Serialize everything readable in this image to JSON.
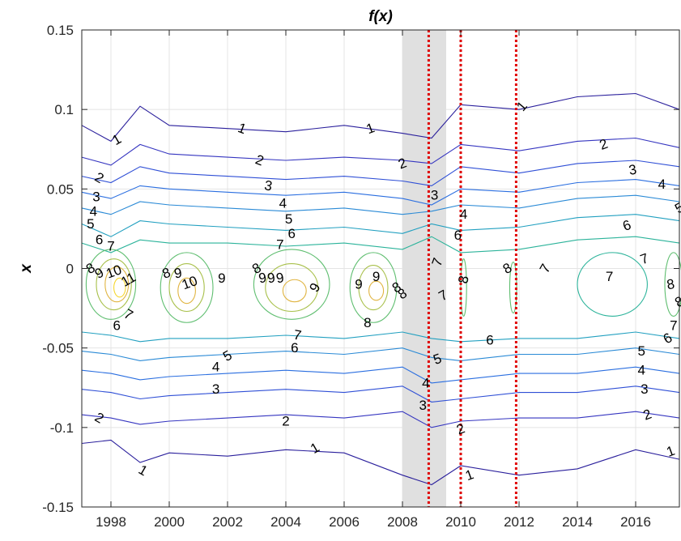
{
  "chart_data": {
    "type": "contour",
    "title": "f(x)",
    "xlabel": "",
    "ylabel": "x",
    "xlim": [
      1997.0,
      2017.5
    ],
    "ylim": [
      -0.15,
      0.15
    ],
    "x_ticks": [
      1998,
      2000,
      2002,
      2004,
      2006,
      2008,
      2010,
      2012,
      2014,
      2016
    ],
    "y_ticks": [
      -0.15,
      -0.1,
      -0.05,
      0,
      0.05,
      0.1,
      0.15
    ],
    "y_tick_labels": [
      "-0.15",
      "-0.1",
      "-0.05",
      "0",
      "0.05",
      "0.1",
      "0.15"
    ],
    "grid": true,
    "shaded_region": [
      2008.0,
      2009.5
    ],
    "vertical_lines": [
      2008.9,
      2010.0,
      2011.9
    ],
    "vertical_line_color": "#e00000",
    "shade_color": "#e0e0e0",
    "contour_levels": [
      1,
      2,
      3,
      4,
      5,
      6,
      7,
      8,
      9,
      10,
      11
    ],
    "level_colors": [
      "#2a1f9c",
      "#3535c0",
      "#2f4fd6",
      "#2a6ee0",
      "#2a8ad6",
      "#22a0c0",
      "#2bb39a",
      "#5fbe70",
      "#a8c04a",
      "#e0b440",
      "#f5d62a"
    ],
    "contour_lines": [
      {
        "level": 1,
        "x": [
          1997.0,
          1998.0,
          1999.0,
          2000.0,
          2002.0,
          2004.0,
          2006.0,
          2008.0,
          2009.0,
          2010.0,
          2012.0,
          2014.0,
          2016.0,
          2017.5
        ],
        "y": [
          0.09,
          0.08,
          0.102,
          0.09,
          0.088,
          0.086,
          0.09,
          0.085,
          0.082,
          0.103,
          0.1,
          0.108,
          0.11,
          0.1
        ]
      },
      {
        "level": 2,
        "x": [
          1997.0,
          1998.0,
          1999.0,
          2000.0,
          2002.0,
          2004.0,
          2006.0,
          2008.0,
          2009.0,
          2010.0,
          2012.0,
          2014.0,
          2016.0,
          2017.5
        ],
        "y": [
          0.07,
          0.065,
          0.078,
          0.072,
          0.07,
          0.068,
          0.07,
          0.068,
          0.066,
          0.078,
          0.074,
          0.08,
          0.082,
          0.076
        ]
      },
      {
        "level": 3,
        "x": [
          1997.0,
          1998.0,
          1999.0,
          2000.0,
          2002.0,
          2004.0,
          2006.0,
          2008.0,
          2009.0,
          2010.0,
          2012.0,
          2014.0,
          2016.0,
          2017.5
        ],
        "y": [
          0.058,
          0.054,
          0.064,
          0.06,
          0.058,
          0.056,
          0.058,
          0.055,
          0.052,
          0.064,
          0.06,
          0.066,
          0.068,
          0.064
        ]
      },
      {
        "level": 4,
        "x": [
          1997.0,
          1998.0,
          1999.0,
          2000.0,
          2002.0,
          2004.0,
          2006.0,
          2008.0,
          2009.0,
          2010.0,
          2012.0,
          2014.0,
          2016.0,
          2017.5
        ],
        "y": [
          0.048,
          0.044,
          0.052,
          0.05,
          0.048,
          0.046,
          0.048,
          0.044,
          0.04,
          0.05,
          0.048,
          0.054,
          0.056,
          0.052
        ]
      },
      {
        "level": 5,
        "x": [
          1997.0,
          1998.0,
          1999.0,
          2000.0,
          2002.0,
          2004.0,
          2006.0,
          2008.0,
          2009.0,
          2010.0,
          2012.0,
          2014.0,
          2016.0,
          2017.5
        ],
        "y": [
          0.038,
          0.034,
          0.042,
          0.04,
          0.038,
          0.036,
          0.038,
          0.034,
          0.036,
          0.04,
          0.038,
          0.044,
          0.046,
          0.042
        ]
      },
      {
        "level": 6,
        "x": [
          1997.0,
          1998.0,
          1999.0,
          2000.0,
          2002.0,
          2004.0,
          2006.0,
          2008.0,
          2009.0,
          2010.0,
          2012.0,
          2014.0,
          2016.0,
          2017.5
        ],
        "y": [
          0.028,
          0.02,
          0.03,
          0.028,
          0.026,
          0.024,
          0.026,
          0.022,
          0.028,
          0.024,
          0.026,
          0.032,
          0.034,
          0.03
        ]
      },
      {
        "level": 7,
        "x": [
          1997.0,
          1998.0,
          1999.0,
          2000.0,
          2002.0,
          2004.0,
          2006.0,
          2008.0,
          2009.0,
          2010.0,
          2012.0,
          2014.0,
          2016.0,
          2017.5
        ],
        "y": [
          0.016,
          0.01,
          0.018,
          0.016,
          0.016,
          0.014,
          0.016,
          0.012,
          0.02,
          0.01,
          0.012,
          0.018,
          0.02,
          0.016
        ]
      },
      {
        "level": 6,
        "x": [
          1997.0,
          1998.0,
          1999.0,
          2000.0,
          2002.0,
          2004.0,
          2006.0,
          2008.0,
          2009.0,
          2010.0,
          2012.0,
          2014.0,
          2016.0,
          2017.5
        ],
        "y": [
          -0.04,
          -0.042,
          -0.046,
          -0.044,
          -0.044,
          -0.042,
          -0.044,
          -0.04,
          -0.044,
          -0.046,
          -0.044,
          -0.044,
          -0.04,
          -0.044
        ]
      },
      {
        "level": 5,
        "x": [
          1997.0,
          1998.0,
          1999.0,
          2000.0,
          2002.0,
          2004.0,
          2006.0,
          2008.0,
          2009.0,
          2010.0,
          2012.0,
          2014.0,
          2016.0,
          2017.5
        ],
        "y": [
          -0.052,
          -0.054,
          -0.058,
          -0.056,
          -0.054,
          -0.052,
          -0.054,
          -0.05,
          -0.056,
          -0.058,
          -0.054,
          -0.054,
          -0.05,
          -0.054
        ]
      },
      {
        "level": 4,
        "x": [
          1997.0,
          1998.0,
          1999.0,
          2000.0,
          2002.0,
          2004.0,
          2006.0,
          2008.0,
          2009.0,
          2010.0,
          2012.0,
          2014.0,
          2016.0,
          2017.5
        ],
        "y": [
          -0.064,
          -0.066,
          -0.07,
          -0.068,
          -0.066,
          -0.064,
          -0.066,
          -0.062,
          -0.072,
          -0.07,
          -0.066,
          -0.066,
          -0.062,
          -0.066
        ]
      },
      {
        "level": 3,
        "x": [
          1997.0,
          1998.0,
          1999.0,
          2000.0,
          2002.0,
          2004.0,
          2006.0,
          2008.0,
          2009.0,
          2010.0,
          2012.0,
          2014.0,
          2016.0,
          2017.5
        ],
        "y": [
          -0.076,
          -0.078,
          -0.082,
          -0.08,
          -0.078,
          -0.076,
          -0.078,
          -0.074,
          -0.084,
          -0.082,
          -0.078,
          -0.078,
          -0.074,
          -0.078
        ]
      },
      {
        "level": 2,
        "x": [
          1997.0,
          1998.0,
          1999.0,
          2000.0,
          2002.0,
          2004.0,
          2006.0,
          2008.0,
          2009.0,
          2010.0,
          2012.0,
          2014.0,
          2016.0,
          2017.5
        ],
        "y": [
          -0.092,
          -0.094,
          -0.098,
          -0.096,
          -0.094,
          -0.092,
          -0.094,
          -0.09,
          -0.1,
          -0.096,
          -0.094,
          -0.094,
          -0.09,
          -0.094
        ]
      },
      {
        "level": 1,
        "x": [
          1997.0,
          1998.0,
          1999.0,
          2000.0,
          2002.0,
          2004.0,
          2006.0,
          2008.0,
          2009.0,
          2010.0,
          2012.0,
          2014.0,
          2016.0,
          2017.5
        ],
        "y": [
          -0.11,
          -0.108,
          -0.122,
          -0.116,
          -0.118,
          -0.114,
          -0.116,
          -0.13,
          -0.136,
          -0.124,
          -0.13,
          -0.126,
          -0.114,
          -0.12
        ]
      }
    ],
    "contour_blobs": [
      {
        "level": 8,
        "cx": 1998.0,
        "cy": -0.01,
        "rx": 0.85,
        "ry": 0.022
      },
      {
        "level": 9,
        "cx": 1998.1,
        "cy": -0.01,
        "rx": 0.6,
        "ry": 0.016
      },
      {
        "level": 10,
        "cx": 1998.2,
        "cy": -0.01,
        "rx": 0.4,
        "ry": 0.011
      },
      {
        "level": 11,
        "cx": 1998.3,
        "cy": -0.012,
        "rx": 0.2,
        "ry": 0.006
      },
      {
        "level": 8,
        "cx": 2000.6,
        "cy": -0.012,
        "rx": 0.9,
        "ry": 0.022
      },
      {
        "level": 9,
        "cx": 2000.6,
        "cy": -0.012,
        "rx": 0.6,
        "ry": 0.015
      },
      {
        "level": 10,
        "cx": 2000.6,
        "cy": -0.014,
        "rx": 0.3,
        "ry": 0.008
      },
      {
        "level": 8,
        "cx": 2004.2,
        "cy": -0.01,
        "rx": 1.3,
        "ry": 0.022
      },
      {
        "level": 9,
        "cx": 2004.2,
        "cy": -0.012,
        "rx": 0.9,
        "ry": 0.015
      },
      {
        "level": 10,
        "cx": 2004.3,
        "cy": -0.014,
        "rx": 0.4,
        "ry": 0.007
      },
      {
        "level": 8,
        "cx": 2007.0,
        "cy": -0.012,
        "rx": 0.8,
        "ry": 0.022
      },
      {
        "level": 9,
        "cx": 2007.0,
        "cy": -0.012,
        "rx": 0.5,
        "ry": 0.014
      },
      {
        "level": 10,
        "cx": 2007.1,
        "cy": -0.014,
        "rx": 0.25,
        "ry": 0.006
      },
      {
        "level": 8,
        "cx": 2010.1,
        "cy": -0.012,
        "rx": 0.1,
        "ry": 0.018
      },
      {
        "level": 8,
        "cx": 2011.8,
        "cy": -0.012,
        "rx": 0.12,
        "ry": 0.016
      },
      {
        "level": 7,
        "cx": 2015.2,
        "cy": -0.01,
        "rx": 1.2,
        "ry": 0.02
      },
      {
        "level": 8,
        "cx": 2017.3,
        "cy": -0.01,
        "rx": 0.3,
        "ry": 0.02
      }
    ],
    "contour_labels": [
      {
        "text": "1",
        "x": 1998.2,
        "y": 0.081,
        "rot": -30
      },
      {
        "text": "1",
        "x": 2002.5,
        "y": 0.088,
        "rot": 20
      },
      {
        "text": "1",
        "x": 2006.9,
        "y": 0.088,
        "rot": -20
      },
      {
        "text": "1",
        "x": 2012.1,
        "y": 0.102,
        "rot": -50
      },
      {
        "text": "2",
        "x": 1997.6,
        "y": 0.057,
        "rot": 30
      },
      {
        "text": "2",
        "x": 2003.1,
        "y": 0.068,
        "rot": 20
      },
      {
        "text": "2",
        "x": 2008.0,
        "y": 0.066,
        "rot": -20
      },
      {
        "text": "2",
        "x": 2014.9,
        "y": 0.078,
        "rot": -20
      },
      {
        "text": "3",
        "x": 1997.5,
        "y": 0.045,
        "rot": 0
      },
      {
        "text": "3",
        "x": 2003.4,
        "y": 0.052,
        "rot": 10
      },
      {
        "text": "3",
        "x": 2009.1,
        "y": 0.046,
        "rot": 0
      },
      {
        "text": "3",
        "x": 2015.9,
        "y": 0.062,
        "rot": -10
      },
      {
        "text": "4",
        "x": 1997.4,
        "y": 0.036,
        "rot": 0
      },
      {
        "text": "4",
        "x": 2003.9,
        "y": 0.041,
        "rot": 0
      },
      {
        "text": "4",
        "x": 2010.1,
        "y": 0.034,
        "rot": 0
      },
      {
        "text": "4",
        "x": 2016.9,
        "y": 0.053,
        "rot": 0
      },
      {
        "text": "5",
        "x": 1997.3,
        "y": 0.028,
        "rot": 0
      },
      {
        "text": "5",
        "x": 2004.1,
        "y": 0.031,
        "rot": 0
      },
      {
        "text": "5",
        "x": 2017.5,
        "y": 0.038,
        "rot": -30
      },
      {
        "text": "6",
        "x": 1997.6,
        "y": 0.018,
        "rot": 0
      },
      {
        "text": "6",
        "x": 2004.2,
        "y": 0.022,
        "rot": 0
      },
      {
        "text": "6",
        "x": 2009.9,
        "y": 0.021,
        "rot": 0
      },
      {
        "text": "6",
        "x": 2015.7,
        "y": 0.027,
        "rot": -20
      },
      {
        "text": "7",
        "x": 1998.0,
        "y": 0.014,
        "rot": 0
      },
      {
        "text": "7",
        "x": 2003.8,
        "y": 0.015,
        "rot": 0
      },
      {
        "text": "7",
        "x": 2009.2,
        "y": 0.004,
        "rot": -70
      },
      {
        "text": "7",
        "x": 2012.9,
        "y": 0.0,
        "rot": -60
      },
      {
        "text": "7",
        "x": 2016.3,
        "y": 0.006,
        "rot": -20
      },
      {
        "text": "7",
        "x": 2015.1,
        "y": -0.005,
        "rot": 0
      },
      {
        "text": "8",
        "x": 1997.3,
        "y": 0.0,
        "rot": -30
      },
      {
        "text": "9",
        "x": 1997.6,
        "y": -0.003,
        "rot": -30
      },
      {
        "text": "10",
        "x": 1998.1,
        "y": -0.002,
        "rot": -20
      },
      {
        "text": "11",
        "x": 1998.6,
        "y": -0.007,
        "rot": -30
      },
      {
        "text": "8",
        "x": 1999.9,
        "y": -0.003,
        "rot": -20
      },
      {
        "text": "9",
        "x": 2000.3,
        "y": -0.003,
        "rot": -10
      },
      {
        "text": "10",
        "x": 2000.7,
        "y": -0.009,
        "rot": -20
      },
      {
        "text": "9",
        "x": 2001.8,
        "y": -0.006,
        "rot": 0
      },
      {
        "text": "8",
        "x": 2003.0,
        "y": 0.0,
        "rot": -30
      },
      {
        "text": "9",
        "x": 2003.2,
        "y": -0.006,
        "rot": -10
      },
      {
        "text": "9",
        "x": 2003.5,
        "y": -0.006,
        "rot": -10
      },
      {
        "text": "9",
        "x": 2003.8,
        "y": -0.006,
        "rot": -10
      },
      {
        "text": "9",
        "x": 2005.0,
        "y": -0.012,
        "rot": -60
      },
      {
        "text": "9",
        "x": 2006.5,
        "y": -0.01,
        "rot": 0
      },
      {
        "text": "9",
        "x": 2007.1,
        "y": -0.005,
        "rot": 0
      },
      {
        "text": "8",
        "x": 2007.8,
        "y": -0.012,
        "rot": -30
      },
      {
        "text": "8",
        "x": 2008.0,
        "y": -0.016,
        "rot": -30
      },
      {
        "text": "8",
        "x": 2006.8,
        "y": -0.034,
        "rot": 0
      },
      {
        "text": "7",
        "x": 2009.4,
        "y": -0.017,
        "rot": -30
      },
      {
        "text": "8",
        "x": 2010.1,
        "y": -0.007,
        "rot": -80
      },
      {
        "text": "8",
        "x": 2011.6,
        "y": 0.0,
        "rot": -30
      },
      {
        "text": "8",
        "x": 2017.2,
        "y": -0.01,
        "rot": -10
      },
      {
        "text": "8",
        "x": 2017.5,
        "y": -0.021,
        "rot": -30
      },
      {
        "text": "7",
        "x": 1998.6,
        "y": -0.029,
        "rot": 30
      },
      {
        "text": "7",
        "x": 2004.4,
        "y": -0.042,
        "rot": 10
      },
      {
        "text": "7",
        "x": 2017.3,
        "y": -0.036,
        "rot": 0
      },
      {
        "text": "6",
        "x": 1998.2,
        "y": -0.036,
        "rot": 0
      },
      {
        "text": "6",
        "x": 2004.3,
        "y": -0.05,
        "rot": 0
      },
      {
        "text": "6",
        "x": 2011.0,
        "y": -0.045,
        "rot": 0
      },
      {
        "text": "6",
        "x": 2017.1,
        "y": -0.044,
        "rot": -30
      },
      {
        "text": "5",
        "x": 2002.0,
        "y": -0.055,
        "rot": -30
      },
      {
        "text": "5",
        "x": 2009.2,
        "y": -0.057,
        "rot": -20
      },
      {
        "text": "5",
        "x": 2016.2,
        "y": -0.052,
        "rot": 0
      },
      {
        "text": "4",
        "x": 2001.6,
        "y": -0.062,
        "rot": 0
      },
      {
        "text": "4",
        "x": 2008.8,
        "y": -0.072,
        "rot": 0
      },
      {
        "text": "4",
        "x": 2016.2,
        "y": -0.064,
        "rot": 0
      },
      {
        "text": "3",
        "x": 2001.6,
        "y": -0.076,
        "rot": 0
      },
      {
        "text": "3",
        "x": 2008.7,
        "y": -0.086,
        "rot": 0
      },
      {
        "text": "3",
        "x": 2016.3,
        "y": -0.076,
        "rot": 0
      },
      {
        "text": "2",
        "x": 1997.6,
        "y": -0.094,
        "rot": 30
      },
      {
        "text": "2",
        "x": 2004.0,
        "y": -0.096,
        "rot": 0
      },
      {
        "text": "2",
        "x": 2010.0,
        "y": -0.101,
        "rot": -20
      },
      {
        "text": "2",
        "x": 2016.4,
        "y": -0.092,
        "rot": -20
      },
      {
        "text": "1",
        "x": 1999.1,
        "y": -0.127,
        "rot": 30
      },
      {
        "text": "1",
        "x": 2005.0,
        "y": -0.113,
        "rot": -30
      },
      {
        "text": "1",
        "x": 2010.3,
        "y": -0.13,
        "rot": -20
      },
      {
        "text": "1",
        "x": 2017.2,
        "y": -0.115,
        "rot": -20
      }
    ]
  }
}
